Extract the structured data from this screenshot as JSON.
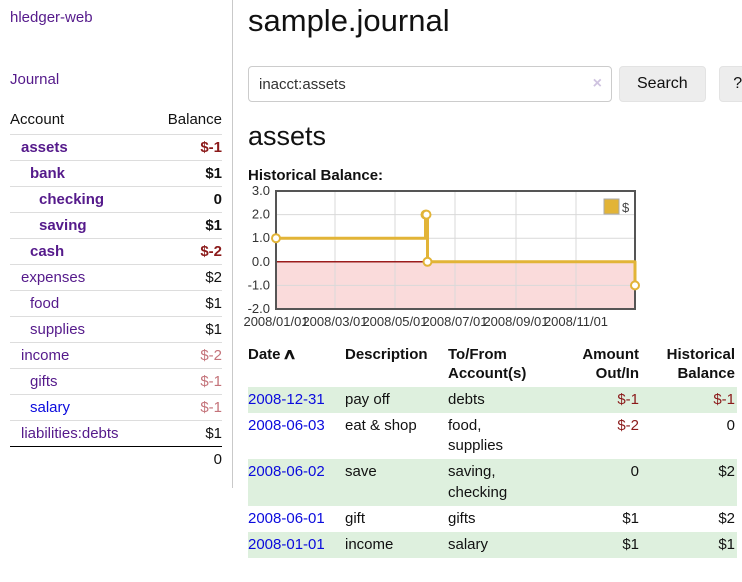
{
  "sidebar": {
    "brand": "hledger-web",
    "journal_link": "Journal",
    "accounts_table": {
      "headers": {
        "account": "Account",
        "balance": "Balance"
      },
      "rows": [
        {
          "name": "assets",
          "depth": 1,
          "bold": true,
          "balance": "$-1",
          "neg": "strong",
          "blue": false
        },
        {
          "name": "bank",
          "depth": 2,
          "bold": true,
          "balance": "$1",
          "neg": "",
          "blue": false
        },
        {
          "name": "checking",
          "depth": 3,
          "bold": true,
          "balance": "0",
          "neg": "",
          "blue": false
        },
        {
          "name": "saving",
          "depth": 3,
          "bold": true,
          "balance": "$1",
          "neg": "",
          "blue": false
        },
        {
          "name": "cash",
          "depth": 2,
          "bold": true,
          "balance": "$-2",
          "neg": "strong",
          "blue": false
        },
        {
          "name": "expenses",
          "depth": 1,
          "bold": false,
          "balance": "$2",
          "neg": "",
          "blue": false
        },
        {
          "name": "food",
          "depth": 2,
          "bold": false,
          "balance": "$1",
          "neg": "",
          "blue": false
        },
        {
          "name": "supplies",
          "depth": 2,
          "bold": false,
          "balance": "$1",
          "neg": "",
          "blue": false
        },
        {
          "name": "income",
          "depth": 1,
          "bold": false,
          "balance": "$-2",
          "neg": "faded",
          "blue": false
        },
        {
          "name": "gifts",
          "depth": 2,
          "bold": false,
          "balance": "$-1",
          "neg": "faded",
          "blue": false
        },
        {
          "name": "salary",
          "depth": 2,
          "bold": false,
          "balance": "$-1",
          "neg": "faded",
          "blue": true
        },
        {
          "name": "liabilities:debts",
          "depth": 1,
          "bold": false,
          "balance": "$1",
          "neg": "",
          "blue": false
        }
      ],
      "total": "0"
    }
  },
  "header": {
    "title": "sample.journal"
  },
  "search": {
    "value": "inacct:assets",
    "clear_icon": "×",
    "button_label": "Search",
    "help_label": "?"
  },
  "account_page": {
    "heading": "assets",
    "chart_label": "Historical Balance:"
  },
  "chart_data": {
    "type": "line",
    "step": true,
    "title": "Historical Balance:",
    "series": [
      {
        "name": "$",
        "color": "#e2b437",
        "points": [
          [
            "2008-01-01",
            1
          ],
          [
            "2008-06-01",
            2
          ],
          [
            "2008-06-02",
            2
          ],
          [
            "2008-06-03",
            0
          ],
          [
            "2008-12-31",
            -1
          ]
        ]
      }
    ],
    "x_ticks": [
      "2008/01/01",
      "2008/03/01",
      "2008/05/01",
      "2008/07/01",
      "2008/09/01",
      "2008/11/01"
    ],
    "y_ticks": [
      3.0,
      2.0,
      1.0,
      0.0,
      -1.0,
      -2.0
    ],
    "xlim": [
      "2008-01-01",
      "2008-12-31"
    ],
    "ylim": [
      -2,
      3
    ],
    "grid": true,
    "legend_position": "top-right",
    "negative_region_color": "#fadbdb",
    "zero_line_color": "#9b1c1c"
  },
  "register_table": {
    "headers": {
      "date": "Date",
      "sort_icon": "∧",
      "description": "Description",
      "accounts": "To/From Account(s)",
      "amount": "Amount Out/In",
      "balance": "Historical Balance"
    },
    "rows": [
      {
        "date": "2008-12-31",
        "description": "pay off",
        "accounts": "debts",
        "amount": "$-1",
        "balance": "$-1",
        "shaded": true
      },
      {
        "date": "2008-06-03",
        "description": "eat & shop",
        "accounts": "food, supplies",
        "amount": "$-2",
        "balance": "0",
        "shaded": false
      },
      {
        "date": "2008-06-02",
        "description": "save",
        "accounts": "saving, checking",
        "amount": "0",
        "balance": "$2",
        "shaded": true
      },
      {
        "date": "2008-06-01",
        "description": "gift",
        "accounts": "gifts",
        "amount": "$1",
        "balance": "$2",
        "shaded": false
      },
      {
        "date": "2008-01-01",
        "description": "income",
        "accounts": "salary",
        "amount": "$1",
        "balance": "$1",
        "shaded": true
      }
    ]
  },
  "colors": {
    "link_purple": "#551a8b",
    "link_blue": "#0b0bdd",
    "negative_strong": "#8b1a1a",
    "negative_faded": "#c4737a",
    "row_green": "#def0de",
    "chart_gold": "#e2b437",
    "chart_negative_region": "#fadbdb"
  }
}
